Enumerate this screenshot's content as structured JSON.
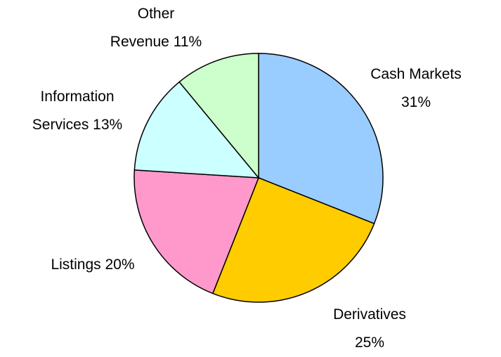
{
  "chart_data": {
    "type": "pie",
    "categories": [
      "Cash Markets",
      "Derivatives",
      "Listings",
      "Information Services",
      "Other Revenue"
    ],
    "values": [
      31,
      25,
      20,
      13,
      11
    ],
    "value_labels": [
      "31%",
      "25%",
      "20%",
      "13%",
      "11%"
    ],
    "colors": [
      "#99ccff",
      "#ffcc00",
      "#ff99cc",
      "#ccffff",
      "#ccffcc"
    ]
  }
}
